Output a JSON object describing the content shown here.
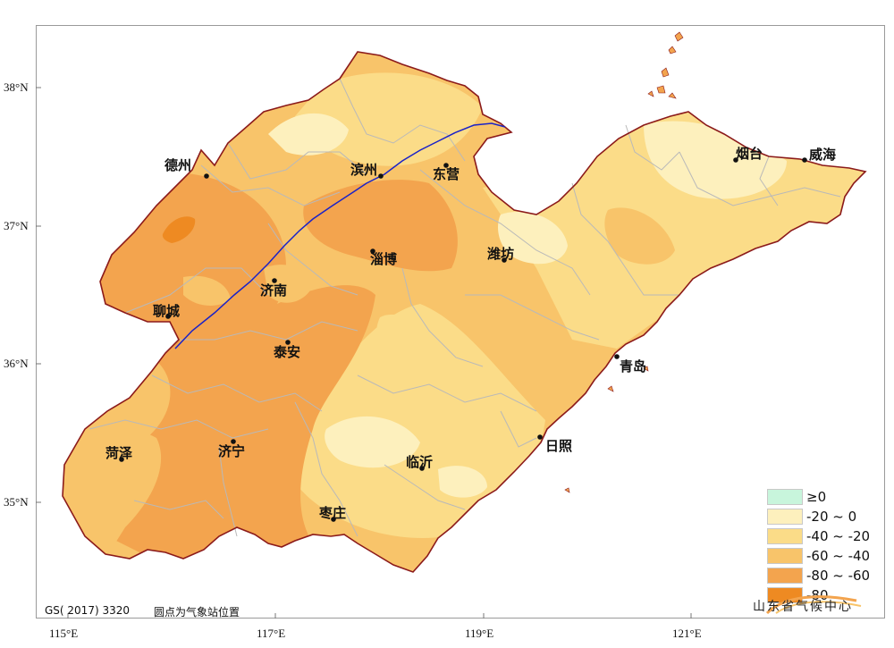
{
  "axes": {
    "lat_labels": [
      "38°N",
      "37°N",
      "36°N",
      "35°N"
    ],
    "lon_labels": [
      "115°E",
      "117°E",
      "119°E",
      "121°E"
    ]
  },
  "cities": [
    {
      "name": "德州"
    },
    {
      "name": "滨州"
    },
    {
      "name": "东营"
    },
    {
      "name": "烟台"
    },
    {
      "name": "威海"
    },
    {
      "name": "潍坊"
    },
    {
      "name": "淄博"
    },
    {
      "name": "济南"
    },
    {
      "name": "聊城"
    },
    {
      "name": "泰安"
    },
    {
      "name": "青岛"
    },
    {
      "name": "日照"
    },
    {
      "name": "菏泽"
    },
    {
      "name": "济宁"
    },
    {
      "name": "临沂"
    },
    {
      "name": "枣庄"
    }
  ],
  "legend": {
    "items": [
      {
        "label": "≥0",
        "color": "#c8f5dc"
      },
      {
        "label": "-20 ~ 0",
        "color": "#fdf0bd"
      },
      {
        "label": "-40 ~ -20",
        "color": "#fbdc88"
      },
      {
        "label": "-60 ~ -40",
        "color": "#f8c46a"
      },
      {
        "label": "-80 ~ -60",
        "color": "#f3a44e"
      },
      {
        "label": "-80",
        "color": "#ee8a22"
      }
    ]
  },
  "footer": {
    "approval_number": "GS( 2017) 3320",
    "note": "圆点为气象站位置"
  },
  "organization": "山东省气候中心",
  "colors": {
    "province_border": "#8b1a1a",
    "river": "#1a22c8",
    "county_border": "#b9b9b9",
    "ocean": "#ffffff"
  }
}
